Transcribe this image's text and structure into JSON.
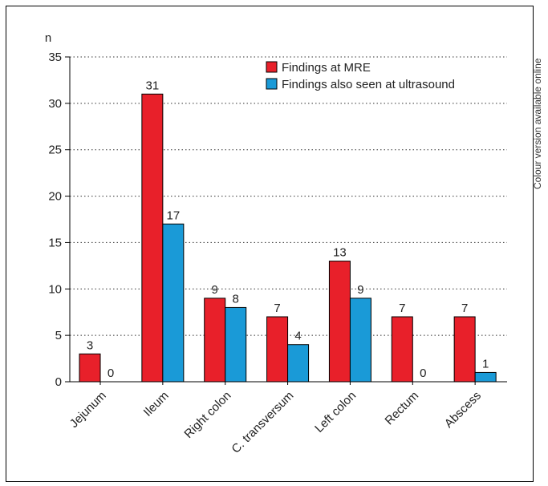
{
  "side_note": "Colour version available online",
  "chart_data": {
    "type": "bar",
    "title": "",
    "xlabel": "",
    "ylabel": "n",
    "ylim": [
      0,
      35
    ],
    "yticks": [
      0,
      5,
      10,
      15,
      20,
      25,
      30,
      35
    ],
    "grid": "horizontal dotted",
    "legend_position": "top-right",
    "categories": [
      "Jejunum",
      "Ileum",
      "Right colon",
      "C. transversum",
      "Left colon",
      "Rectum",
      "Abscess"
    ],
    "series": [
      {
        "name": "Findings at MRE",
        "color": "#e8202a",
        "values": [
          3,
          31,
          9,
          7,
          13,
          7,
          7
        ]
      },
      {
        "name": "Findings also seen at ultrasound",
        "color": "#1a9ad7",
        "values": [
          0,
          17,
          8,
          4,
          9,
          0,
          1
        ]
      }
    ]
  }
}
